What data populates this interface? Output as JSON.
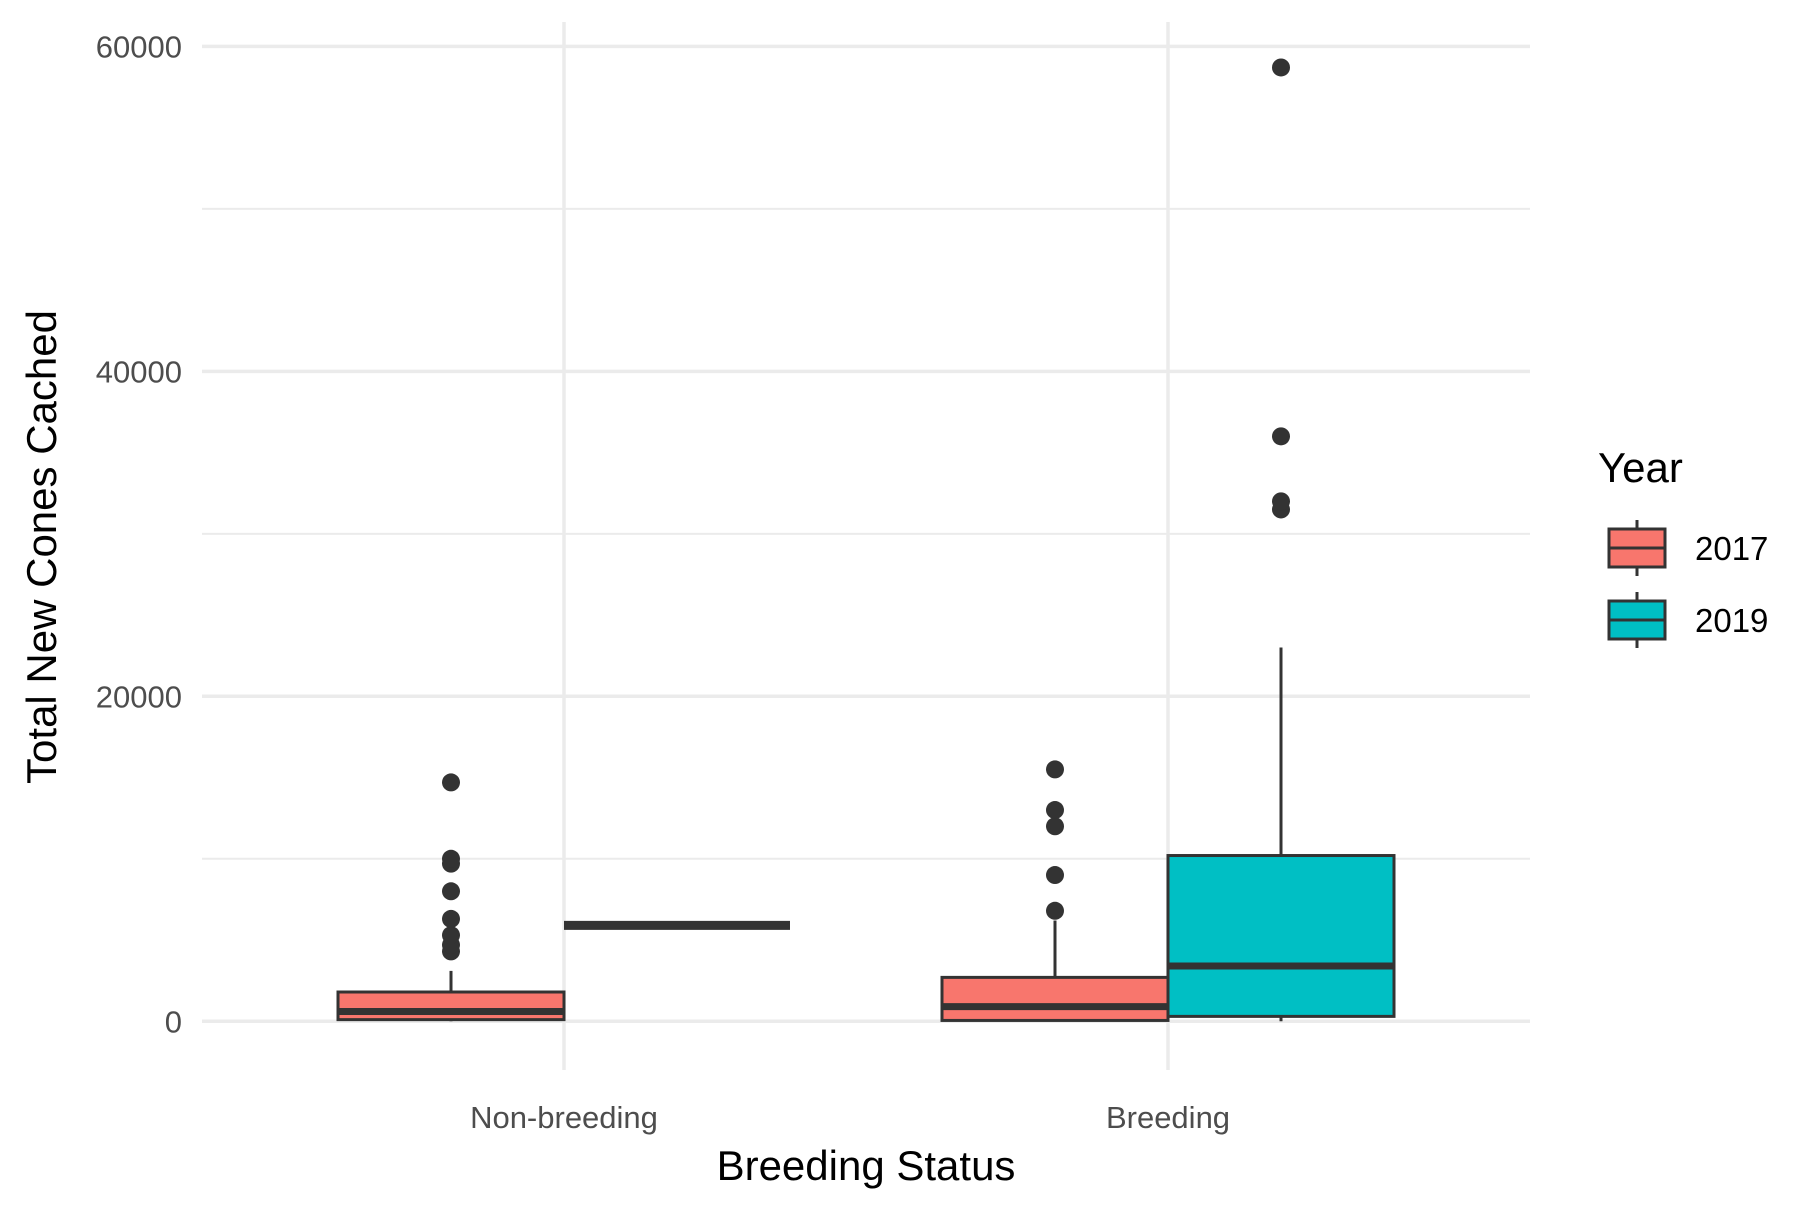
{
  "chart_data": {
    "type": "boxplot",
    "title": "",
    "xlabel": "Breeding Status",
    "ylabel": "Total New Cones Cached",
    "categories": [
      "Non-breeding",
      "Breeding"
    ],
    "ylim": [
      -3000,
      61500
    ],
    "yticks": [
      0,
      20000,
      40000,
      60000
    ],
    "ytick_labels": [
      "0",
      "20000",
      "40000",
      "60000"
    ],
    "y_minor_gridlines": [
      10000,
      30000,
      50000
    ],
    "grid": true,
    "legend": {
      "title": "Year",
      "position": "right",
      "entries": [
        {
          "label": "2017",
          "color": "#F8766D"
        },
        {
          "label": "2019",
          "color": "#00BFC4"
        }
      ]
    },
    "series": [
      {
        "name": "2017",
        "color": "#F8766D",
        "boxes": [
          {
            "category": "Non-breeding",
            "min": 0,
            "q1": 100,
            "median": 600,
            "q3": 1800,
            "max": 3100,
            "outliers": [
              4300,
              4700,
              5300,
              6300,
              8000,
              9700,
              10000,
              14700
            ]
          },
          {
            "category": "Breeding",
            "min": 0,
            "q1": 50,
            "median": 900,
            "q3": 2700,
            "max": 6200,
            "outliers": [
              6800,
              9000,
              12000,
              13000,
              15500
            ]
          }
        ]
      },
      {
        "name": "2019",
        "color": "#00BFC4",
        "boxes": [
          {
            "category": "Non-breeding",
            "min": 5900,
            "q1": 5900,
            "median": 5900,
            "q3": 5900,
            "max": 5900,
            "outliers": []
          },
          {
            "category": "Breeding",
            "min": 0,
            "q1": 300,
            "median": 3400,
            "q3": 10200,
            "max": 23000,
            "outliers": [
              31500,
              32000,
              36000,
              58700
            ]
          }
        ]
      }
    ]
  }
}
